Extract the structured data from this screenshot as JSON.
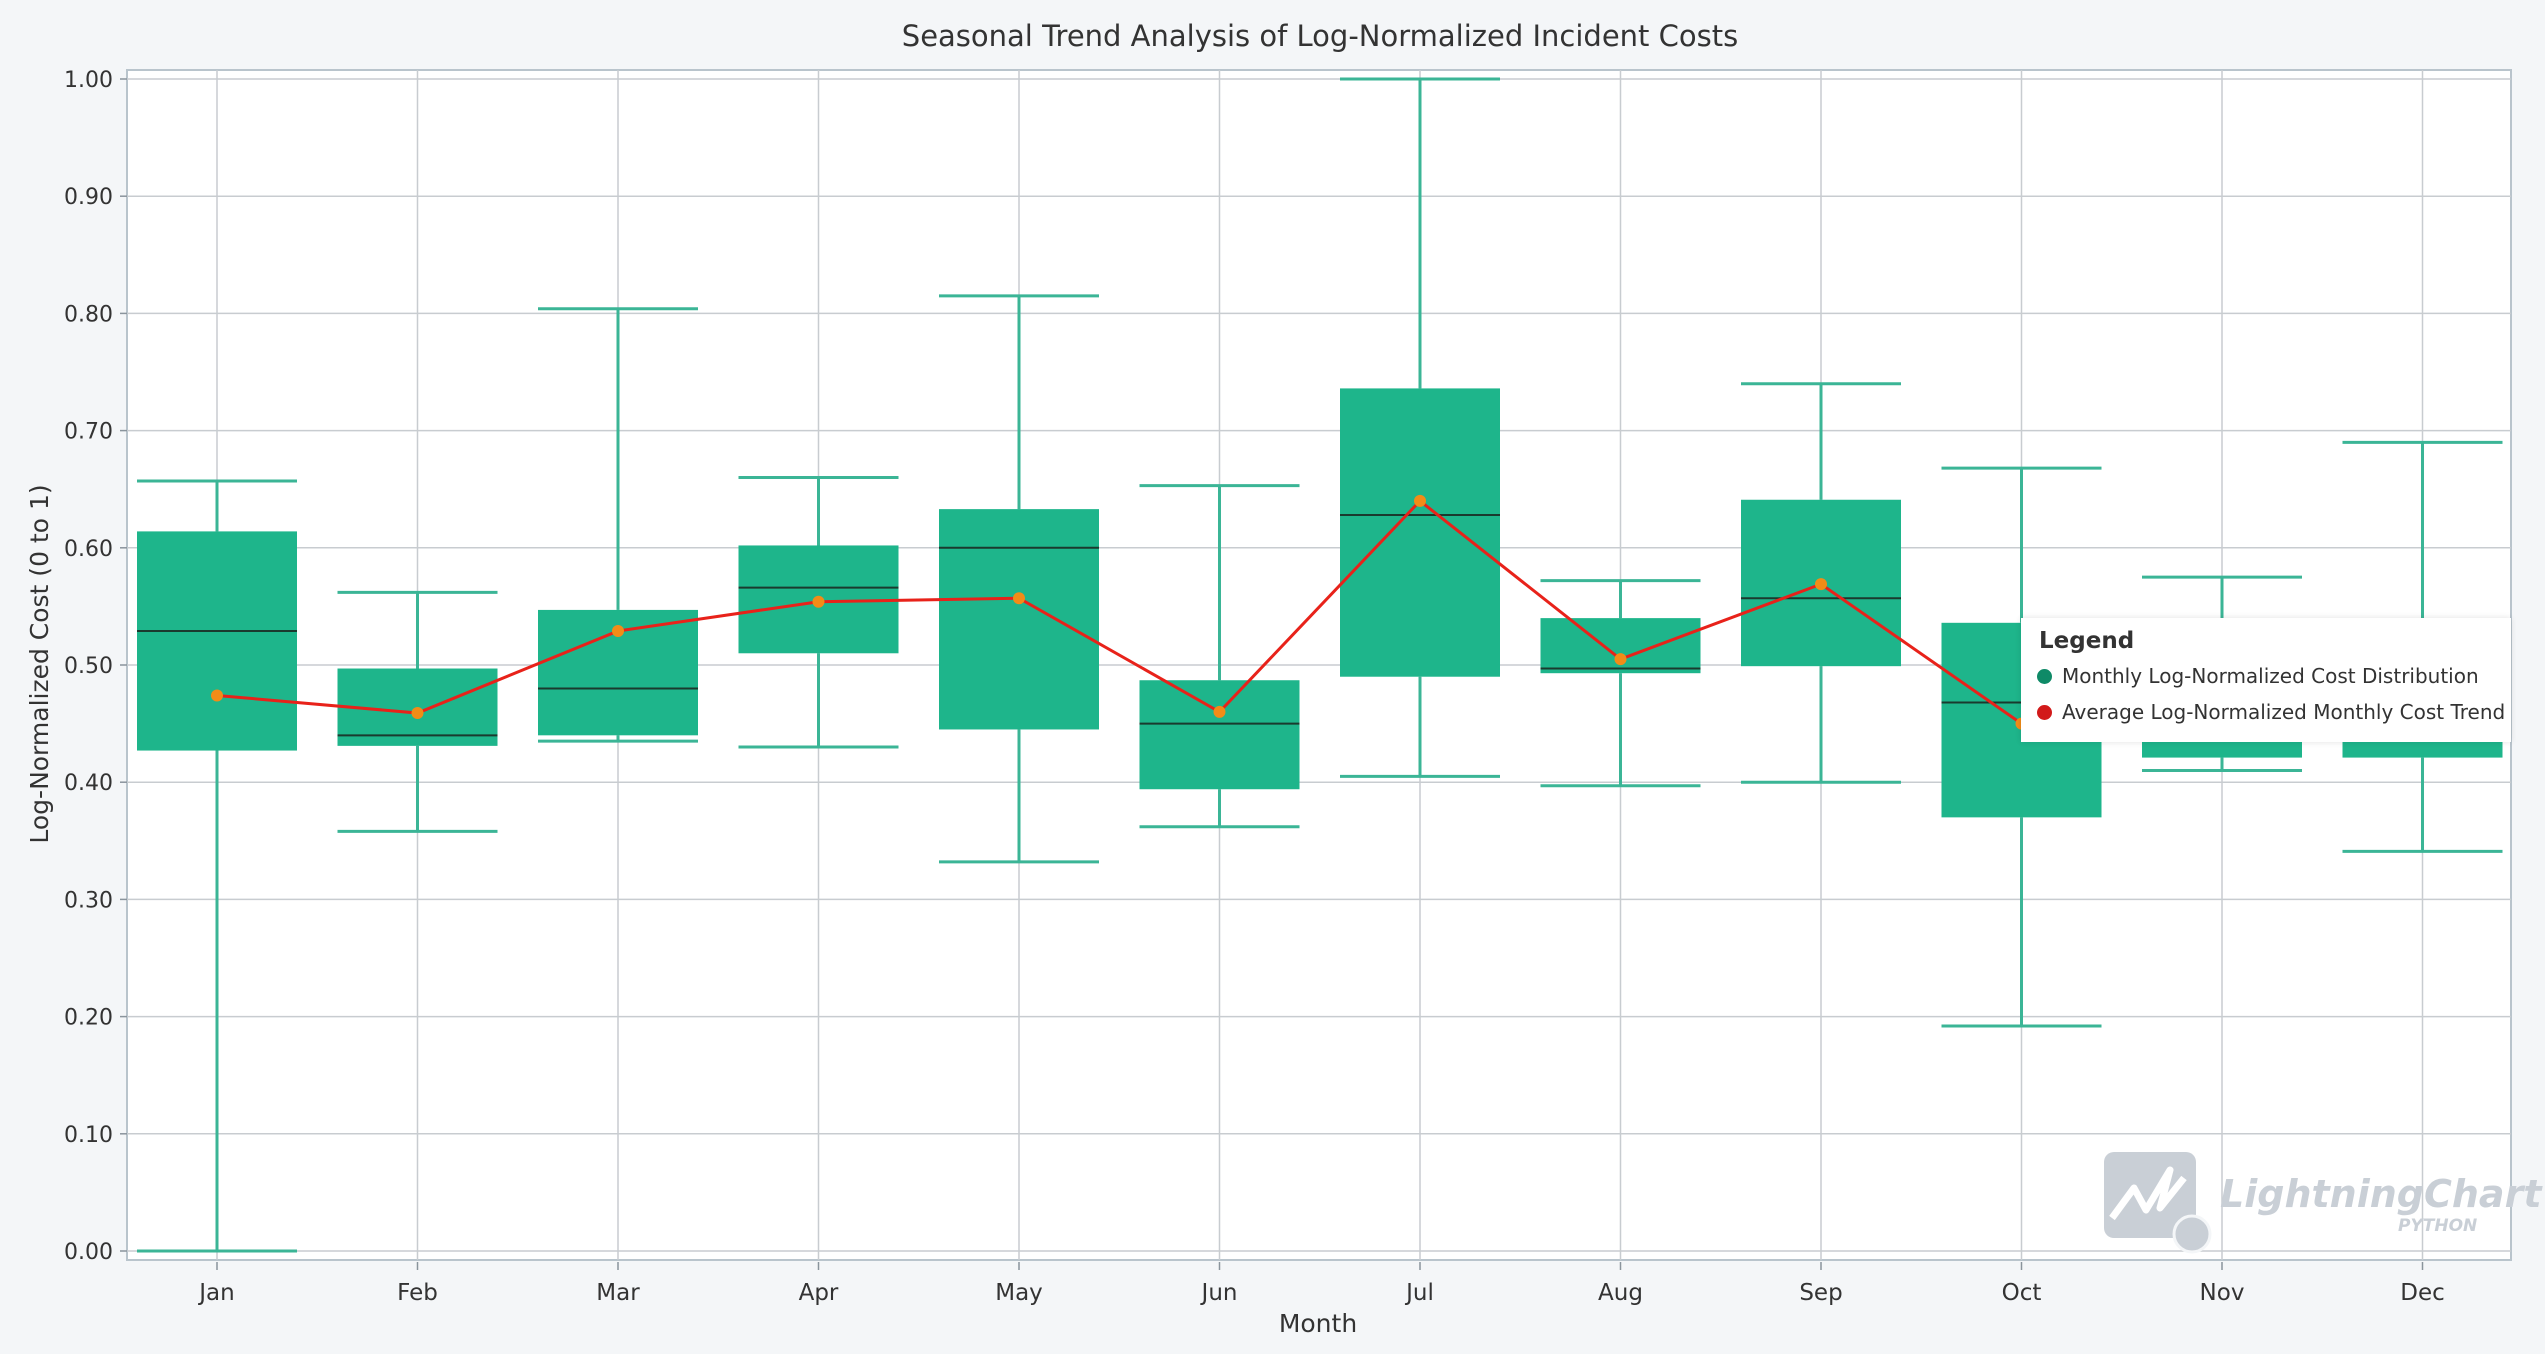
{
  "colors": {
    "box_fill": "#1eb58b",
    "whisker": "#3bb596",
    "median": "#1a3a2e",
    "trend_line": "#e8221a",
    "trend_marker": "#f28c17",
    "grid": "#c8ccd0",
    "legend_box_dot": "#0f8a67",
    "legend_trend_dot": "#d21a1a"
  },
  "chart_data": {
    "type": "box",
    "title": "Seasonal Trend Analysis of Log-Normalized Incident Costs",
    "xlabel": "Month",
    "ylabel": "Log-Normalized Cost (0 to 1)",
    "ylim": [
      0,
      1
    ],
    "yticks": [
      "0.00",
      "0.10",
      "0.20",
      "0.30",
      "0.40",
      "0.50",
      "0.60",
      "0.70",
      "0.80",
      "0.90",
      "1.00"
    ],
    "grid": true,
    "legend_placement": "right",
    "categories": [
      "Jan",
      "Feb",
      "Mar",
      "Apr",
      "May",
      "Jun",
      "Jul",
      "Aug",
      "Sep",
      "Oct",
      "Nov",
      "Dec"
    ],
    "boxes": [
      {
        "min": 0.0,
        "q1": 0.427,
        "median": 0.529,
        "q3": 0.614,
        "max": 0.657
      },
      {
        "min": 0.358,
        "q1": 0.431,
        "median": 0.44,
        "q3": 0.497,
        "max": 0.562
      },
      {
        "min": 0.435,
        "q1": 0.44,
        "median": 0.48,
        "q3": 0.547,
        "max": 0.804
      },
      {
        "min": 0.43,
        "q1": 0.51,
        "median": 0.566,
        "q3": 0.602,
        "max": 0.66
      },
      {
        "min": 0.332,
        "q1": 0.445,
        "median": 0.6,
        "q3": 0.633,
        "max": 0.815
      },
      {
        "min": 0.362,
        "q1": 0.394,
        "median": 0.45,
        "q3": 0.487,
        "max": 0.653
      },
      {
        "min": 0.405,
        "q1": 0.49,
        "median": 0.628,
        "q3": 0.736,
        "max": 1.0
      },
      {
        "min": 0.397,
        "q1": 0.493,
        "median": 0.497,
        "q3": 0.54,
        "max": 0.572
      },
      {
        "min": 0.4,
        "q1": 0.499,
        "median": 0.557,
        "q3": 0.641,
        "max": 0.74
      },
      {
        "min": 0.192,
        "q1": 0.37,
        "median": 0.468,
        "q3": 0.536,
        "max": 0.668
      },
      {
        "min": 0.41,
        "q1": 0.421,
        "median": 0.47,
        "q3": 0.515,
        "max": 0.575
      },
      {
        "min": 0.341,
        "q1": 0.421,
        "median": 0.465,
        "q3": 0.48,
        "max": 0.69
      }
    ],
    "trend": [
      0.474,
      0.459,
      0.529,
      0.554,
      0.557,
      0.46,
      0.64,
      0.505,
      0.569,
      0.45,
      0.46,
      0.455
    ],
    "legend": {
      "title": "Legend",
      "items": [
        "Monthly Log-Normalized Cost Distribution",
        "Average Log-Normalized Monthly Cost Trend"
      ]
    }
  },
  "watermark": {
    "brand": "LightningChart",
    "sub": "PYTHON",
    "mark": "®"
  }
}
